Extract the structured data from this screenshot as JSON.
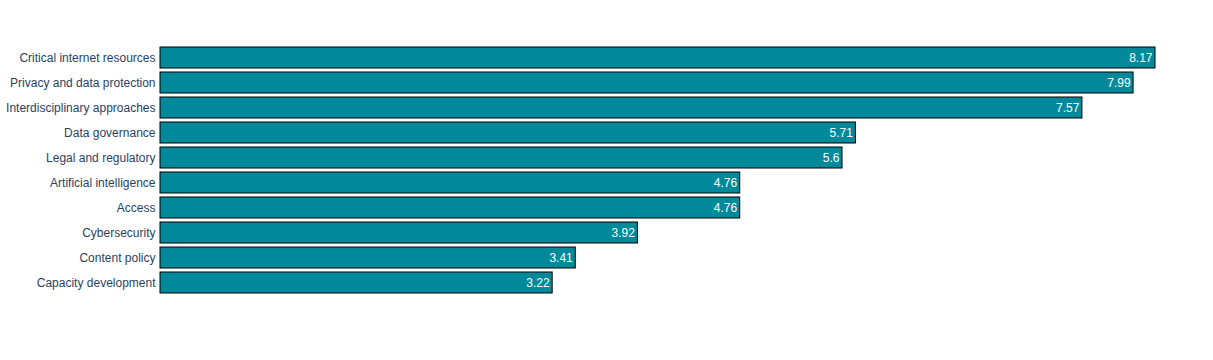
{
  "chart_data": {
    "type": "bar",
    "orientation": "horizontal",
    "categories": [
      "Critical internet resources",
      "Privacy and data protection",
      "Interdisciplinary approaches",
      "Data governance",
      "Legal and regulatory",
      "Artificial intelligence",
      "Access",
      "Cybersecurity",
      "Content policy",
      "Capacity development"
    ],
    "values": [
      8.17,
      7.99,
      7.57,
      5.71,
      5.6,
      4.76,
      4.76,
      3.92,
      3.41,
      3.22
    ],
    "color": "#00899b",
    "data_labels": true,
    "tick_labels": "y",
    "grid": false
  }
}
